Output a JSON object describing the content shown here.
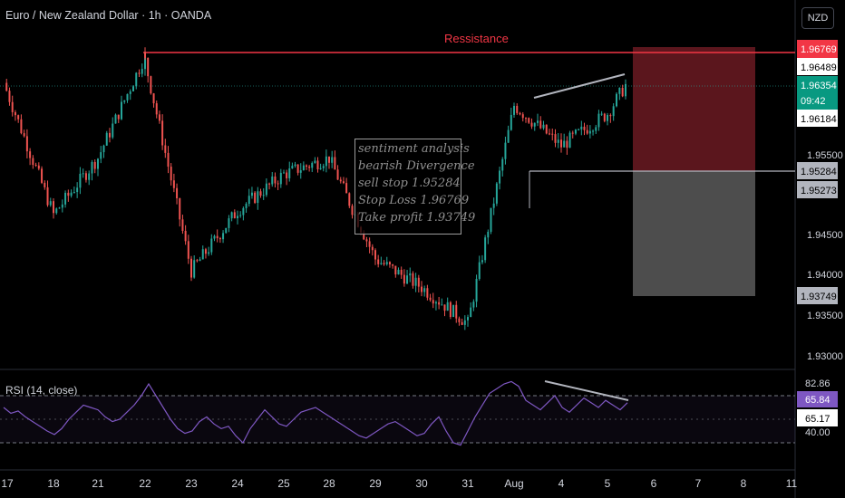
{
  "header": {
    "title": "Euro / New Zealand Dollar · 1h · OANDA",
    "currency_button": "NZD"
  },
  "annotation": {
    "lines": [
      "sentiment analysis",
      "bearish Divergence",
      "sell stop 1.95284",
      "Stop Loss 1.96769",
      "Take profit 1.93749"
    ]
  },
  "resistance_label": "Ressistance",
  "rsi_title": "RSI (14, close)",
  "colors": {
    "up": "#26a69a",
    "down": "#ef5350",
    "rsi": "#7e57c2",
    "resistance": "#f23645",
    "stop_zone": "#6b1a22",
    "target_zone": "#555555"
  },
  "chart_data": [
    {
      "type": "candlestick",
      "title": "Euro / New Zealand Dollar · 1h · OANDA",
      "x_tick_labels": [
        "17",
        "18",
        "21",
        "22",
        "23",
        "24",
        "25",
        "28",
        "29",
        "30",
        "31",
        "Aug",
        "4",
        "5",
        "6",
        "7",
        "8",
        "11"
      ],
      "y_tick_labels": [
        "1.95500",
        "1.94500",
        "1.94000",
        "1.93500",
        "1.93000"
      ],
      "ylim": [
        1.9285,
        1.9705
      ],
      "price_labels": [
        {
          "value": "1.96769",
          "role": "stop-loss"
        },
        {
          "value": "1.96489",
          "role": "level"
        },
        {
          "value": "1.96354",
          "role": "last",
          "countdown": "09:42"
        },
        {
          "value": "1.96184",
          "role": "level"
        },
        {
          "value": "1.95284",
          "role": "entry"
        },
        {
          "value": "1.95273",
          "role": "level"
        },
        {
          "value": "1.93749",
          "role": "target"
        }
      ],
      "key_points": [
        {
          "x": "17",
          "close": 1.9638
        },
        {
          "x": "18",
          "close": 1.9475
        },
        {
          "x": "21",
          "close": 1.9545
        },
        {
          "x": "22",
          "high": 1.9675,
          "close": 1.9665
        },
        {
          "x": "23",
          "low": 1.9405
        },
        {
          "x": "24",
          "close": 1.948
        },
        {
          "x": "25",
          "close": 1.9525
        },
        {
          "x": "28",
          "close": 1.9545
        },
        {
          "x": "29",
          "close": 1.942
        },
        {
          "x": "30",
          "close": 1.9385
        },
        {
          "x": "31",
          "low": 1.9295,
          "close": 1.934
        },
        {
          "x": "Aug",
          "close": 1.961
        },
        {
          "x": "4",
          "close": 1.956
        },
        {
          "x": "5",
          "close": 1.96
        },
        {
          "x": "5",
          "close": 1.9635
        }
      ],
      "resistance_level": 1.96769,
      "position": {
        "entry": 1.95284,
        "stop_loss": 1.96769,
        "take_profit": 1.93749
      },
      "divergence_trendline_price": [
        1.9615,
        1.9643
      ],
      "grid": false
    },
    {
      "type": "line",
      "title": "RSI (14, close)",
      "y_tick_labels": [
        "82.86",
        "65.84",
        "65.17",
        "40.00"
      ],
      "series": [
        {
          "name": "RSI (14, close)",
          "values": [
            60,
            55,
            57,
            52,
            48,
            44,
            40,
            37,
            42,
            50,
            56,
            62,
            60,
            58,
            52,
            48,
            50,
            56,
            62,
            70,
            80,
            70,
            60,
            50,
            42,
            38,
            40,
            48,
            52,
            46,
            42,
            44,
            36,
            30,
            42,
            50,
            58,
            52,
            46,
            44,
            50,
            56,
            58,
            60,
            56,
            52,
            48,
            44,
            40,
            36,
            34,
            38,
            42,
            46,
            48,
            44,
            40,
            36,
            38,
            46,
            52,
            40,
            30,
            28,
            40,
            52,
            62,
            72,
            76,
            80,
            82,
            78,
            66,
            62,
            58,
            64,
            70,
            60,
            56,
            62,
            68,
            64,
            60,
            66,
            62,
            58,
            64
          ]
        }
      ],
      "bands": [
        70,
        30
      ],
      "divergence_trendline_rsi": [
        82,
        68
      ]
    }
  ]
}
